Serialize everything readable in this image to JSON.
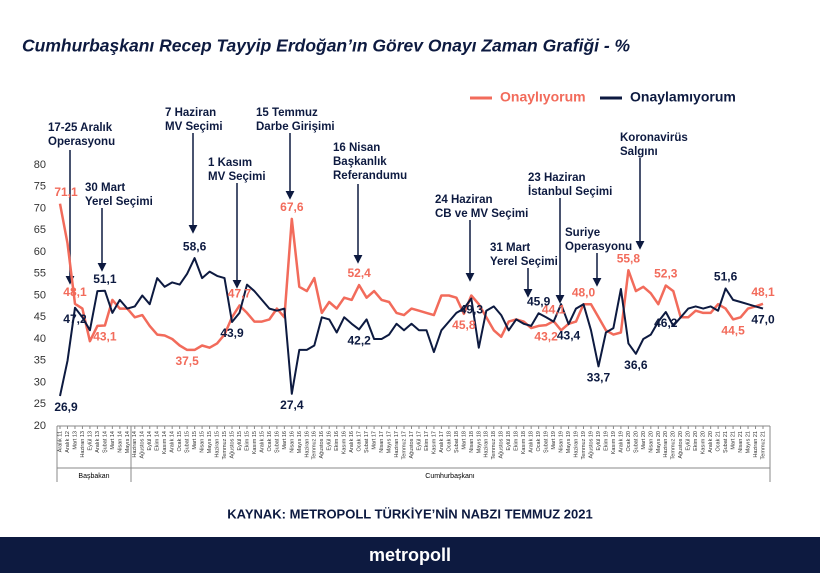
{
  "chart_data": {
    "type": "line",
    "title": "Cumhurbaşkanı Recep Tayyip Erdoğan’ın Görev Onayı Zaman Grafiği - %",
    "source": "KAYNAK: METROPOLL TÜRKİYE’NİN NABZI TEMMUZ 2021",
    "brand": "metropoll",
    "group_labels": [
      "Başbakan",
      "Cumhurbaşkanı"
    ],
    "categories": [
      "Aralık 11",
      "Aralık 12",
      "Mart 13",
      "Haziran 13",
      "Eylül 13",
      "Aralık 13",
      "Şubat 14",
      "Mart 14",
      "Nisan 14",
      "Mayıs 14",
      "Haziran 14",
      "Ağustos 14",
      "Eylül 14",
      "Ekim 14",
      "Kasım 14",
      "Aralık 14",
      "Ocak 15",
      "Şubat 15",
      "Mart 15",
      "Nisan 15",
      "Mayıs 15",
      "Haziran 15",
      "Temmuz 15",
      "Ağustos 15",
      "Eylül 15",
      "Ekim 15",
      "Kasım 15",
      "Aralık 15",
      "Ocak 16",
      "Şubat 16",
      "Mart 16",
      "Nisan 16",
      "Mayıs 16",
      "Haziran 16",
      "Temmuz 16",
      "Ağustos 16",
      "Eylül 16",
      "Ekim 16",
      "Kasım 16",
      "Aralık 16",
      "Ocak 17",
      "Şubat 17",
      "Mart 17",
      "Nisan 17",
      "Mayıs 17",
      "Haziran 17",
      "Temmuz 17",
      "Ağustos 17",
      "Eylül 17",
      "Ekim 17",
      "Kasım 17",
      "Aralık 17",
      "Ocak 18",
      "Şubat 18",
      "Mart 18",
      "Nisan 18",
      "Mayıs 18",
      "Haziran 18",
      "Temmuz 18",
      "Ağustos 18",
      "Eylül 18",
      "Ekim 18",
      "Kasım 18",
      "Aralık 18",
      "Ocak 19",
      "Şubat 19",
      "Mart 19",
      "Nisan 19",
      "Mayıs 19",
      "Haziran 19",
      "Temmuz 19",
      "Ağustos 19",
      "Eylül 19",
      "Ekim 19",
      "Kasım 19",
      "Aralık 19",
      "Ocak 20",
      "Şubat 20",
      "Mart 20",
      "Nisan 20",
      "Mayıs 20",
      "Haziran 20",
      "Temmuz 20",
      "Ağustos 20",
      "Eylül 20",
      "Ekim 20",
      "Kasım 20",
      "Aralık 20",
      "Ocak 21",
      "Şubat 21",
      "Mart 21",
      "Nisan 21",
      "Mayıs 21",
      "Haziran 21",
      "Temmuz 21"
    ],
    "series": [
      {
        "name": "Onaylıyorum",
        "color": "#f26b5b",
        "values": [
          71.1,
          62,
          48.1,
          47,
          39.5,
          43,
          43.1,
          49,
          47,
          47,
          45,
          45.5,
          43,
          41,
          40.8,
          40,
          38.5,
          37.5,
          37.5,
          38.5,
          38,
          39,
          41,
          45,
          47.7,
          46,
          44,
          44,
          44.5,
          47,
          45,
          67.6,
          52,
          51,
          54,
          46,
          48.5,
          47,
          49.5,
          49,
          52.4,
          49.5,
          51,
          49,
          48.5,
          46,
          45.5,
          47,
          46.5,
          46,
          45.5,
          50,
          50,
          49.5,
          45.8,
          50,
          48,
          45,
          42,
          40.5,
          44,
          44.5,
          44,
          42.5,
          43,
          43.2,
          44.1,
          42,
          43.5,
          44,
          48,
          48,
          45,
          42,
          41,
          41.5,
          55.8,
          51,
          52,
          50.5,
          48,
          52.3,
          51,
          45,
          45,
          46.5,
          46,
          46,
          48,
          47,
          44.5,
          45,
          47,
          47.5,
          48.1
        ],
        "value_labels": [
          "71,1",
          null,
          "48,1",
          null,
          null,
          null,
          "43,1",
          null,
          null,
          null,
          null,
          null,
          null,
          null,
          null,
          null,
          null,
          "37,5",
          null,
          null,
          null,
          null,
          null,
          null,
          "47,7",
          null,
          null,
          null,
          null,
          null,
          null,
          "67,6",
          null,
          null,
          null,
          null,
          null,
          null,
          null,
          null,
          "52,4",
          null,
          null,
          null,
          null,
          null,
          null,
          null,
          null,
          null,
          null,
          null,
          null,
          null,
          "45,8",
          null,
          null,
          null,
          null,
          null,
          null,
          null,
          null,
          null,
          null,
          "43,2",
          "44,1",
          null,
          null,
          null,
          "48,0",
          null,
          null,
          null,
          null,
          null,
          "55,8",
          null,
          null,
          null,
          null,
          "52,3",
          null,
          null,
          null,
          null,
          null,
          null,
          null,
          null,
          "44,5",
          null,
          null,
          null,
          "48,1"
        ]
      },
      {
        "name": "Onaylamıyorum",
        "color": "#0d1a40",
        "values": [
          26.9,
          35,
          47.2,
          45,
          42,
          51,
          51.1,
          46,
          49,
          47,
          47.5,
          50,
          48,
          54,
          52,
          53,
          52.5,
          55,
          58.6,
          54,
          55.5,
          54.5,
          54,
          43.9,
          46,
          52.5,
          51,
          49,
          47,
          46.5,
          47,
          27.4,
          37.5,
          37.5,
          38.5,
          45,
          44.5,
          41.5,
          45,
          43.5,
          42.2,
          44.5,
          40,
          40,
          41,
          43.5,
          42,
          43.5,
          42,
          42,
          37,
          42,
          44,
          46,
          47,
          49.3,
          38,
          46.5,
          47.5,
          45.5,
          42,
          44.5,
          43.5,
          43,
          45.9,
          45,
          44,
          48,
          43.4,
          47,
          48,
          42,
          33.7,
          41.5,
          42.5,
          51.5,
          39,
          36.6,
          40,
          41,
          44,
          46.2,
          43,
          45,
          47,
          47.5,
          47,
          47.5,
          46.5,
          51.6,
          49,
          48.5,
          48,
          47.5,
          47.0
        ],
        "value_labels": [
          "26,9",
          null,
          "47,2",
          null,
          null,
          null,
          "51,1",
          null,
          null,
          null,
          null,
          null,
          null,
          null,
          null,
          null,
          null,
          null,
          "58,6",
          null,
          null,
          null,
          null,
          "43,9",
          null,
          null,
          null,
          null,
          null,
          null,
          null,
          "27,4",
          null,
          null,
          null,
          null,
          null,
          null,
          null,
          null,
          "42,2",
          null,
          null,
          null,
          null,
          null,
          null,
          null,
          null,
          null,
          null,
          null,
          null,
          null,
          null,
          "49,3",
          null,
          null,
          null,
          null,
          null,
          null,
          null,
          null,
          "45,9",
          null,
          null,
          null,
          "43,4",
          null,
          null,
          null,
          "33,7",
          null,
          null,
          null,
          null,
          "36,6",
          null,
          null,
          null,
          "46,2",
          null,
          null,
          null,
          null,
          null,
          null,
          null,
          "51,6",
          null,
          null,
          null,
          null,
          "47,0"
        ]
      }
    ],
    "annotations": [
      {
        "lines": [
          "17-25 Aralık",
          "Operasyonu"
        ]
      },
      {
        "lines": [
          "30 Mart",
          "Yerel Seçimi"
        ]
      },
      {
        "lines": [
          "7 Haziran",
          "MV Seçimi"
        ]
      },
      {
        "lines": [
          "1 Kasım",
          "MV Seçimi"
        ]
      },
      {
        "lines": [
          "15 Temmuz",
          "Darbe Girişimi"
        ]
      },
      {
        "lines": [
          "16 Nisan",
          "Başkanlık",
          "Referandumu"
        ]
      },
      {
        "lines": [
          "24 Haziran",
          "CB  ve MV Seçimi"
        ]
      },
      {
        "lines": [
          "31 Mart",
          "Yerel Seçimi"
        ]
      },
      {
        "lines": [
          "23 Haziran",
          "İstanbul Seçimi"
        ]
      },
      {
        "lines": [
          "Suriye",
          "Operasyonu"
        ]
      },
      {
        "lines": [
          "Koronavirüs",
          "Salgını"
        ]
      }
    ],
    "ylim": [
      20,
      80
    ],
    "yticks": [
      20,
      25,
      30,
      35,
      40,
      45,
      50,
      55,
      60,
      65,
      70,
      75,
      80
    ],
    "grid": false,
    "legend": "top-right"
  }
}
